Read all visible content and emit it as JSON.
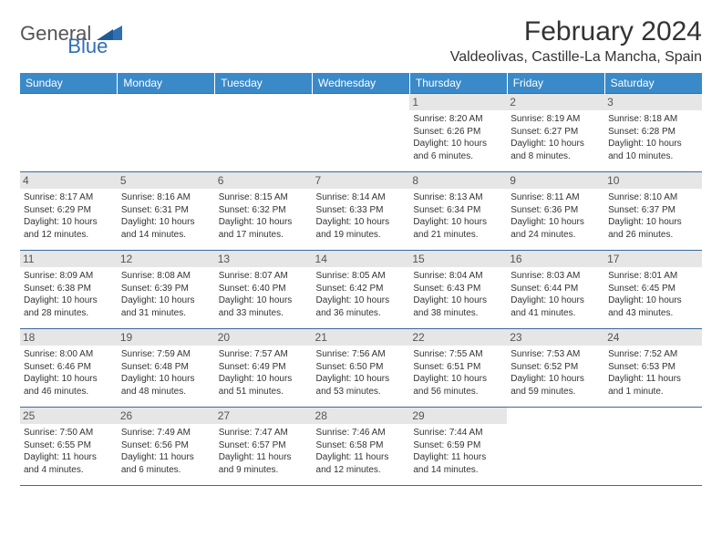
{
  "logo": {
    "text1": "General",
    "text2": "Blue"
  },
  "title": "February 2024",
  "location": "Valdeolivas, Castille-La Mancha, Spain",
  "colors": {
    "header_bg": "#3a8ac9",
    "header_text": "#ffffff",
    "border": "#3a6a9a",
    "daynum_bg": "#e6e6e6",
    "logo_blue": "#2f6fb3"
  },
  "weekdays": [
    "Sunday",
    "Monday",
    "Tuesday",
    "Wednesday",
    "Thursday",
    "Friday",
    "Saturday"
  ],
  "weeks": [
    [
      null,
      null,
      null,
      null,
      {
        "n": "1",
        "sr": "8:20 AM",
        "ss": "6:26 PM",
        "dl": "10 hours and 6 minutes."
      },
      {
        "n": "2",
        "sr": "8:19 AM",
        "ss": "6:27 PM",
        "dl": "10 hours and 8 minutes."
      },
      {
        "n": "3",
        "sr": "8:18 AM",
        "ss": "6:28 PM",
        "dl": "10 hours and 10 minutes."
      }
    ],
    [
      {
        "n": "4",
        "sr": "8:17 AM",
        "ss": "6:29 PM",
        "dl": "10 hours and 12 minutes."
      },
      {
        "n": "5",
        "sr": "8:16 AM",
        "ss": "6:31 PM",
        "dl": "10 hours and 14 minutes."
      },
      {
        "n": "6",
        "sr": "8:15 AM",
        "ss": "6:32 PM",
        "dl": "10 hours and 17 minutes."
      },
      {
        "n": "7",
        "sr": "8:14 AM",
        "ss": "6:33 PM",
        "dl": "10 hours and 19 minutes."
      },
      {
        "n": "8",
        "sr": "8:13 AM",
        "ss": "6:34 PM",
        "dl": "10 hours and 21 minutes."
      },
      {
        "n": "9",
        "sr": "8:11 AM",
        "ss": "6:36 PM",
        "dl": "10 hours and 24 minutes."
      },
      {
        "n": "10",
        "sr": "8:10 AM",
        "ss": "6:37 PM",
        "dl": "10 hours and 26 minutes."
      }
    ],
    [
      {
        "n": "11",
        "sr": "8:09 AM",
        "ss": "6:38 PM",
        "dl": "10 hours and 28 minutes."
      },
      {
        "n": "12",
        "sr": "8:08 AM",
        "ss": "6:39 PM",
        "dl": "10 hours and 31 minutes."
      },
      {
        "n": "13",
        "sr": "8:07 AM",
        "ss": "6:40 PM",
        "dl": "10 hours and 33 minutes."
      },
      {
        "n": "14",
        "sr": "8:05 AM",
        "ss": "6:42 PM",
        "dl": "10 hours and 36 minutes."
      },
      {
        "n": "15",
        "sr": "8:04 AM",
        "ss": "6:43 PM",
        "dl": "10 hours and 38 minutes."
      },
      {
        "n": "16",
        "sr": "8:03 AM",
        "ss": "6:44 PM",
        "dl": "10 hours and 41 minutes."
      },
      {
        "n": "17",
        "sr": "8:01 AM",
        "ss": "6:45 PM",
        "dl": "10 hours and 43 minutes."
      }
    ],
    [
      {
        "n": "18",
        "sr": "8:00 AM",
        "ss": "6:46 PM",
        "dl": "10 hours and 46 minutes."
      },
      {
        "n": "19",
        "sr": "7:59 AM",
        "ss": "6:48 PM",
        "dl": "10 hours and 48 minutes."
      },
      {
        "n": "20",
        "sr": "7:57 AM",
        "ss": "6:49 PM",
        "dl": "10 hours and 51 minutes."
      },
      {
        "n": "21",
        "sr": "7:56 AM",
        "ss": "6:50 PM",
        "dl": "10 hours and 53 minutes."
      },
      {
        "n": "22",
        "sr": "7:55 AM",
        "ss": "6:51 PM",
        "dl": "10 hours and 56 minutes."
      },
      {
        "n": "23",
        "sr": "7:53 AM",
        "ss": "6:52 PM",
        "dl": "10 hours and 59 minutes."
      },
      {
        "n": "24",
        "sr": "7:52 AM",
        "ss": "6:53 PM",
        "dl": "11 hours and 1 minute."
      }
    ],
    [
      {
        "n": "25",
        "sr": "7:50 AM",
        "ss": "6:55 PM",
        "dl": "11 hours and 4 minutes."
      },
      {
        "n": "26",
        "sr": "7:49 AM",
        "ss": "6:56 PM",
        "dl": "11 hours and 6 minutes."
      },
      {
        "n": "27",
        "sr": "7:47 AM",
        "ss": "6:57 PM",
        "dl": "11 hours and 9 minutes."
      },
      {
        "n": "28",
        "sr": "7:46 AM",
        "ss": "6:58 PM",
        "dl": "11 hours and 12 minutes."
      },
      {
        "n": "29",
        "sr": "7:44 AM",
        "ss": "6:59 PM",
        "dl": "11 hours and 14 minutes."
      },
      null,
      null
    ]
  ],
  "labels": {
    "sunrise": "Sunrise: ",
    "sunset": "Sunset: ",
    "daylight": "Daylight: "
  }
}
